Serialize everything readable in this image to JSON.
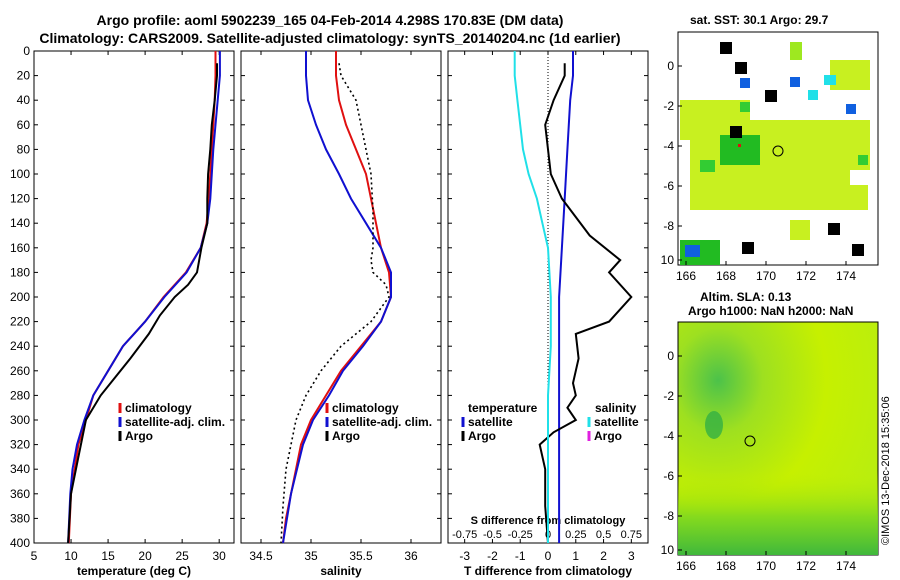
{
  "titles": {
    "line1": "Argo profile: aoml 5902239_165 04-Feb-2014 4.298S 170.83E (DM data)",
    "line2": "Climatology: CARS2009. Satellite-adjusted climatology: synTS_20140204.nc (1d earlier)"
  },
  "credit": "©IMOS 13-Dec-2018 15:35:06",
  "colors": {
    "climatology": "#e01010",
    "satellite": "#1010d0",
    "argo": "#000000",
    "cyan": "#20e0e8",
    "magenta": "#e020e0"
  },
  "depth_ticks": [
    0,
    20,
    40,
    60,
    80,
    100,
    120,
    140,
    160,
    180,
    200,
    220,
    240,
    260,
    280,
    300,
    320,
    340,
    360,
    380,
    400
  ],
  "chart_data": [
    {
      "type": "line",
      "name": "temperature-panel",
      "xlabel": "temperature (deg C)",
      "ylabel": "depth",
      "xlim": [
        5,
        32
      ],
      "ylim": [
        400,
        0
      ],
      "xticks": [
        5,
        10,
        15,
        20,
        25,
        30
      ],
      "legend": [
        "climatology",
        "satellite-adj. clim.",
        "Argo"
      ],
      "series": [
        {
          "name": "climatology",
          "color": "#e01010",
          "style": "solid",
          "x": [
            29.5,
            29.5,
            29.4,
            29.2,
            29.0,
            28.8,
            28.6,
            28.3,
            27.5,
            25.5,
            22.5,
            20.0,
            18.5,
            17.0,
            15.0,
            13.0,
            12.0,
            11.0,
            10.5,
            10.0,
            9.7
          ],
          "depth": [
            0,
            20,
            40,
            60,
            80,
            100,
            120,
            140,
            160,
            180,
            200,
            220,
            230,
            240,
            260,
            280,
            300,
            320,
            340,
            360,
            400
          ]
        },
        {
          "name": "satellite-adj. clim.",
          "color": "#1010d0",
          "style": "solid",
          "x": [
            30.1,
            30.1,
            29.8,
            29.5,
            29.2,
            29.0,
            28.8,
            28.4,
            27.5,
            25.6,
            22.6,
            20.0,
            18.5,
            17.0,
            15.0,
            13.0,
            11.8,
            10.8,
            10.2,
            9.9,
            9.6
          ],
          "depth": [
            0,
            20,
            40,
            60,
            80,
            100,
            120,
            140,
            160,
            180,
            200,
            220,
            230,
            240,
            260,
            280,
            300,
            320,
            340,
            360,
            400
          ]
        },
        {
          "name": "Argo",
          "color": "#000000",
          "style": "solid",
          "x": [
            29.7,
            29.7,
            29.4,
            29.0,
            28.8,
            28.5,
            28.4,
            28.4,
            27.6,
            27.0,
            25.8,
            24.0,
            22.0,
            20.5,
            18.0,
            14.0,
            12.0,
            11.0,
            10.0,
            9.6
          ],
          "depth": [
            10,
            20,
            40,
            60,
            80,
            100,
            120,
            140,
            160,
            180,
            190,
            200,
            215,
            230,
            250,
            280,
            300,
            330,
            360,
            400
          ]
        }
      ]
    },
    {
      "type": "line",
      "name": "salinity-panel",
      "xlabel": "salinity",
      "xlim": [
        34.3,
        36.3
      ],
      "ylim": [
        400,
        0
      ],
      "xticks": [
        34.5,
        35,
        35.5,
        36
      ],
      "legend": [
        "climatology",
        "satellite-adj. clim.",
        "Argo"
      ],
      "series": [
        {
          "name": "climatology",
          "color": "#e01010",
          "style": "solid",
          "x": [
            35.25,
            35.25,
            35.28,
            35.35,
            35.45,
            35.55,
            35.6,
            35.65,
            35.7,
            35.78,
            35.8,
            35.7,
            35.5,
            35.3,
            35.15,
            35.0,
            34.9,
            34.85,
            34.8,
            34.75,
            34.72
          ],
          "depth": [
            0,
            20,
            40,
            60,
            80,
            100,
            120,
            140,
            160,
            180,
            200,
            220,
            240,
            260,
            280,
            300,
            320,
            340,
            360,
            380,
            400
          ]
        },
        {
          "name": "satellite-adj. clim.",
          "color": "#1010d0",
          "style": "solid",
          "x": [
            34.95,
            34.95,
            34.97,
            35.05,
            35.15,
            35.28,
            35.4,
            35.55,
            35.7,
            35.8,
            35.8,
            35.7,
            35.52,
            35.32,
            35.18,
            35.02,
            34.92,
            34.86,
            34.8,
            34.76,
            34.72
          ],
          "depth": [
            0,
            20,
            40,
            60,
            80,
            100,
            120,
            140,
            160,
            180,
            200,
            220,
            240,
            260,
            280,
            300,
            320,
            340,
            360,
            380,
            400
          ]
        },
        {
          "name": "Argo",
          "color": "#000000",
          "style": "dotted",
          "x": [
            35.28,
            35.3,
            35.45,
            35.55,
            35.6,
            35.62,
            35.62,
            35.6,
            35.62,
            35.75,
            35.78,
            35.6,
            35.3,
            35.1,
            34.95,
            34.85,
            34.8,
            34.75,
            34.72,
            34.7
          ],
          "depth": [
            10,
            20,
            40,
            80,
            100,
            130,
            160,
            170,
            180,
            190,
            200,
            220,
            240,
            260,
            280,
            300,
            320,
            340,
            370,
            400
          ]
        }
      ]
    },
    {
      "type": "line",
      "name": "difference-panel",
      "xlabel": "T difference from climatology",
      "x2label": "S difference from climatology",
      "xlim": [
        -3.6,
        3.6
      ],
      "ylim": [
        400,
        0
      ],
      "xticks": [
        -3,
        -2,
        -1,
        0,
        1,
        2,
        3
      ],
      "s_ticks": [
        "-0.75",
        "-0.5",
        "-0.25",
        "0",
        "0.25",
        "0.5",
        "0.75"
      ],
      "legend_left_title": "temperature",
      "legend_right_title": "salinity",
      "legend_left": [
        "satellite",
        "Argo"
      ],
      "legend_right": [
        "satellite",
        "Argo"
      ],
      "series": [
        {
          "name": "temperature satellite",
          "color": "#1010d0",
          "style": "solid",
          "x": [
            0.9,
            0.9,
            0.8,
            0.7,
            0.6,
            0.5,
            0.4,
            0.4,
            0.4,
            0.4,
            0.4,
            0.4,
            0.4
          ],
          "depth": [
            0,
            20,
            40,
            80,
            120,
            160,
            200,
            240,
            280,
            320,
            360,
            380,
            400
          ]
        },
        {
          "name": "temperature Argo",
          "color": "#000000",
          "style": "solid",
          "x": [
            0.6,
            0.6,
            0.2,
            -0.1,
            0.0,
            0.1,
            0.5,
            1.5,
            2.6,
            2.2,
            3.0,
            2.2,
            1.0,
            1.1,
            1.0,
            0.9,
            1.0,
            0.7,
            1.0,
            0.2,
            -0.3,
            -0.1,
            -0.1,
            0.0
          ],
          "depth": [
            10,
            20,
            40,
            60,
            80,
            100,
            120,
            150,
            170,
            180,
            200,
            220,
            230,
            250,
            260,
            270,
            280,
            290,
            300,
            310,
            320,
            340,
            370,
            400
          ]
        },
        {
          "name": "salinity satellite",
          "color": "#20e0e8",
          "style": "solid",
          "x": [
            -1.2,
            -1.2,
            -1.1,
            -0.9,
            -0.7,
            -0.4,
            -0.2,
            0.0,
            0.1,
            0.1,
            0.0,
            0.0,
            0.0,
            0.0
          ],
          "depth": [
            0,
            20,
            40,
            80,
            100,
            120,
            140,
            160,
            200,
            240,
            280,
            320,
            360,
            400
          ]
        }
      ]
    }
  ],
  "maps": {
    "sst": {
      "title": "sat. SST: 30.1 Argo: 29.7",
      "x_ticks": [
        "166",
        "168",
        "170",
        "172",
        "174"
      ],
      "y_ticks": [
        "0",
        "-2",
        "-4",
        "-6",
        "-8",
        "-10"
      ]
    },
    "sla": {
      "title1": "Altim. SLA: 0.13",
      "title2": "Argo h1000: NaN h2000: NaN",
      "x_ticks": [
        "166",
        "168",
        "170",
        "172",
        "174"
      ],
      "y_ticks": [
        "0",
        "-2",
        "-4",
        "-6",
        "-8",
        "-10"
      ]
    }
  }
}
